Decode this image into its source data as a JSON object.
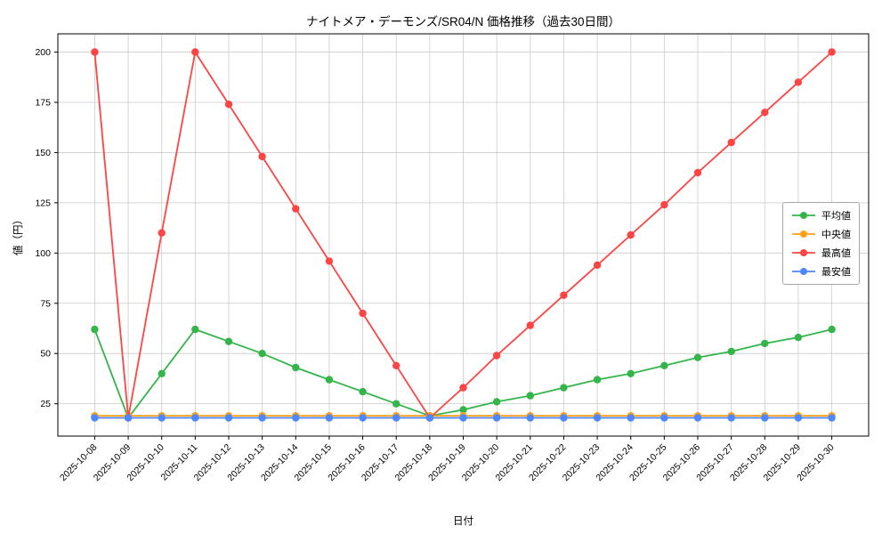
{
  "chart_data": {
    "type": "line",
    "title": "ナイトメア・デーモンズ/SR04/N 価格推移（過去30日間）",
    "xlabel": "日付",
    "ylabel": "値（円）",
    "grid": true,
    "legend_position": "right",
    "yticks": [
      25,
      50,
      75,
      100,
      125,
      150,
      175,
      200
    ],
    "ylim": [
      8.9,
      209.1
    ],
    "categories": [
      "2025-10-08",
      "2025-10-09",
      "2025-10-10",
      "2025-10-11",
      "2025-10-12",
      "2025-10-13",
      "2025-10-14",
      "2025-10-15",
      "2025-10-16",
      "2025-10-17",
      "2025-10-18",
      "2025-10-19",
      "2025-10-20",
      "2025-10-21",
      "2025-10-22",
      "2025-10-23",
      "2025-10-24",
      "2025-10-25",
      "2025-10-26",
      "2025-10-27",
      "2025-10-28",
      "2025-10-29",
      "2025-10-30"
    ],
    "series": [
      {
        "name": "平均値",
        "color": "#34b54a",
        "values": [
          62,
          18,
          40,
          62,
          56,
          50,
          43,
          37,
          31,
          25,
          19,
          22,
          26,
          29,
          33,
          37,
          40,
          44,
          48,
          51,
          55,
          58,
          62
        ]
      },
      {
        "name": "中央値",
        "color": "#ffa01a",
        "values": [
          19,
          19,
          19,
          19,
          19,
          19,
          19,
          19,
          19,
          19,
          19,
          19,
          19,
          19,
          19,
          19,
          19,
          19,
          19,
          19,
          19,
          19,
          19
        ]
      },
      {
        "name": "最高値",
        "color": "#ff4444",
        "values": [
          200,
          18,
          110,
          200,
          174,
          148,
          122,
          96,
          70,
          44,
          18,
          33,
          49,
          64,
          79,
          94,
          109,
          124,
          140,
          155,
          170,
          185,
          200
        ]
      },
      {
        "name": "最安値",
        "color": "#4d88ff",
        "values": [
          18,
          18,
          18,
          18,
          18,
          18,
          18,
          18,
          18,
          18,
          18,
          18,
          18,
          18,
          18,
          18,
          18,
          18,
          18,
          18,
          18,
          18,
          18
        ]
      }
    ]
  }
}
